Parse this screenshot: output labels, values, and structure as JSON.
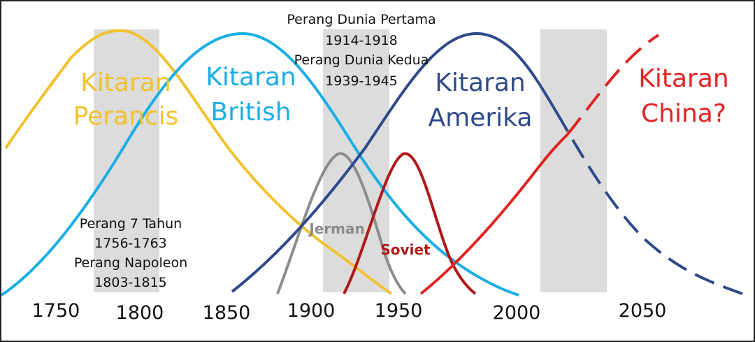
{
  "colors": {
    "french": "#F2C12E",
    "british": "#1BAEE6",
    "american": "#2E4A8A",
    "china": "#E02424",
    "german": "#8C8C8C",
    "soviet": "#B01818",
    "band": "#DCDCDC"
  },
  "cycles": {
    "french": {
      "line1": "Kitaran",
      "line2": "Perancis"
    },
    "british": {
      "line1": "Kitaran",
      "line2": "British"
    },
    "american": {
      "line1": "Kitaran",
      "line2": "Amerika"
    },
    "china": {
      "line1": "Kitaran",
      "line2": "China?"
    }
  },
  "powers": {
    "german": "Jerman",
    "soviet": "Soviet"
  },
  "wars": {
    "early": {
      "line1": "Perang 7 Tahun",
      "line2": "1756-1763",
      "line3": "Perang Napoleon",
      "line4": "1803-1815"
    },
    "world": {
      "line1": "Perang Dunia Pertama",
      "line2": "1914-1918",
      "line3": "Perang Dunia Kedua",
      "line4": "1939-1945"
    }
  },
  "years": [
    "1750",
    "1800",
    "1850",
    "1900",
    "1950",
    "2000",
    "2050"
  ]
}
